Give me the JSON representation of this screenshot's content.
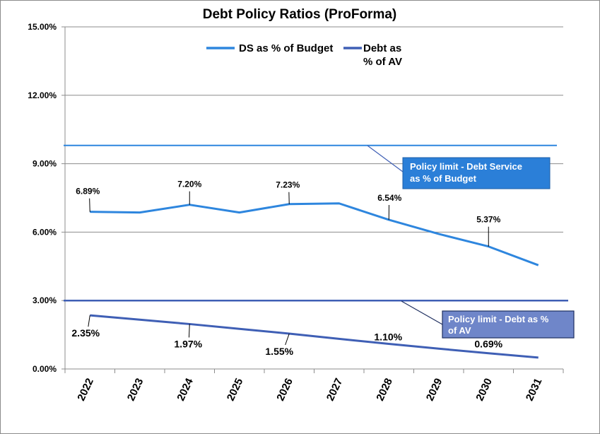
{
  "chart_data": {
    "type": "line",
    "title": "Debt Policy Ratios  (ProForma)",
    "categories": [
      "2022",
      "2023",
      "2024",
      "2025",
      "2026",
      "2027",
      "2028",
      "2029",
      "2030",
      "2031"
    ],
    "ylim": [
      0,
      15
    ],
    "yticks": [
      "0.00%",
      "3.00%",
      "6.00%",
      "9.00%",
      "12.00%",
      "15.00%"
    ],
    "grid": true,
    "legend_position": "top-center",
    "series": [
      {
        "name": "DS as % of Budget",
        "color": "#2e86de",
        "values": [
          6.89,
          6.86,
          7.2,
          6.86,
          7.23,
          7.26,
          6.54,
          5.92,
          5.37,
          4.55
        ],
        "data_labels": [
          "6.89%",
          "",
          "7.20%",
          "",
          "7.23%",
          "",
          "6.54%",
          "",
          "5.37%",
          ""
        ]
      },
      {
        "name": "Debt as % of AV",
        "color": "#3f5fb5",
        "values": [
          2.35,
          2.16,
          1.97,
          1.76,
          1.55,
          1.32,
          1.1,
          0.89,
          0.69,
          0.5
        ],
        "data_labels": [
          "2.35%",
          "",
          "1.97%",
          "",
          "1.55%",
          "",
          "1.10%",
          "",
          "0.69%",
          ""
        ]
      }
    ],
    "reference_lines": [
      {
        "label": "Policy limit - Debt Service as % of Budget",
        "line1": "Policy limit - Debt Service",
        "line2": "as % of Budget",
        "value": 9.8,
        "color": "#2e86de",
        "box_color": "#2b7fd8"
      },
      {
        "label": "Policy limit - Debt as % of AV",
        "line1": "Policy limit - Debt as %",
        "line2": "of AV",
        "value": 3.0,
        "color": "#3f5fb5",
        "box_color": "#6f86c9"
      }
    ],
    "legend": {
      "entry1": "DS as % of Budget",
      "entry2_line1": "Debt as",
      "entry2_line2": "% of AV"
    }
  }
}
